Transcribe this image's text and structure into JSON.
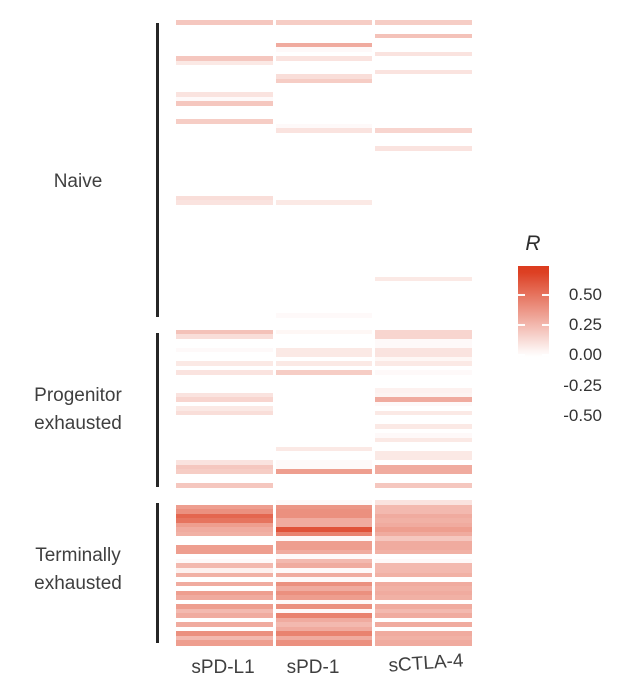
{
  "chart_data": {
    "type": "heatmap",
    "legend_title": "R",
    "columns": [
      "sPD-L1",
      "sPD-1",
      "sCTLA-4"
    ],
    "colorbar": {
      "tick_labels": [
        "0.50",
        "0.25",
        "0.00",
        "-0.25",
        "-0.50"
      ],
      "tick_values": [
        0.5,
        0.25,
        0.0,
        -0.25,
        -0.5
      ],
      "color_high": "#dc3c1f",
      "color_mid": "#ffffff",
      "color_low": "#6b4ecb",
      "scale_pos_max": 0.7,
      "scale_neg_min": -0.6,
      "bar_top_value": 0.74,
      "bar_bottom_value": -0.6
    },
    "row_groups": [
      {
        "name": "Naive",
        "label_lines": [
          "Naive"
        ],
        "values": [
          [
            0.2,
            0.18,
            0.18
          ],
          [
            -0.3,
            -0.3,
            -0.2
          ],
          [
            -0.3,
            -0.32,
            -0.28
          ],
          [
            -0.18,
            0.0,
            0.22
          ],
          [
            -0.08,
            -0.3,
            0.0
          ],
          [
            0.0,
            0.3,
            -0.18
          ],
          [
            -0.32,
            0.02,
            -0.2
          ],
          [
            -0.05,
            -0.06,
            0.1
          ],
          [
            0.2,
            0.1,
            -0.18
          ],
          [
            0.08,
            -0.2,
            -0.2
          ],
          [
            -0.3,
            -0.2,
            0.0
          ],
          [
            -0.45,
            -0.1,
            0.1
          ],
          [
            -0.3,
            0.12,
            -0.18
          ],
          [
            -0.06,
            0.18,
            -0.2
          ],
          [
            -0.2,
            -0.3,
            -0.28
          ],
          [
            -0.18,
            -0.3,
            -0.2
          ],
          [
            0.1,
            -0.2,
            -0.18
          ],
          [
            0.02,
            0.0,
            0.0
          ],
          [
            0.2,
            -0.1,
            -0.08
          ],
          [
            -0.18,
            -0.32,
            -0.3
          ],
          [
            -0.2,
            -0.3,
            -0.32
          ],
          [
            -0.15,
            -0.2,
            -0.3
          ],
          [
            0.18,
            -0.18,
            -0.2
          ],
          [
            -0.05,
            0.02,
            -0.18
          ],
          [
            -0.3,
            0.1,
            0.15
          ],
          [
            -0.35,
            -0.4,
            -0.2
          ],
          [
            -0.3,
            -0.3,
            -0.28
          ],
          [
            -0.15,
            -0.2,
            -0.18
          ],
          [
            -0.1,
            -0.1,
            0.1
          ],
          [
            -0.5,
            -0.55,
            -0.48
          ],
          [
            0.0,
            0.0,
            -0.3
          ],
          [
            0.0,
            -0.18,
            -0.2
          ],
          [
            -0.35,
            -0.28,
            -0.1
          ],
          [
            -0.3,
            -0.3,
            -0.22
          ],
          [
            -0.08,
            -0.2,
            -0.28
          ],
          [
            -0.22,
            -0.08,
            -0.18
          ],
          [
            -0.18,
            -0.2,
            -0.2
          ],
          [
            -0.3,
            -0.3,
            -0.3
          ],
          [
            -0.3,
            -0.28,
            -0.2
          ],
          [
            0.12,
            -0.15,
            -0.1
          ],
          [
            0.1,
            0.08,
            -0.18
          ],
          [
            0.0,
            0.0,
            -0.08
          ],
          [
            -0.15,
            -0.2,
            -0.2
          ],
          [
            -0.35,
            -0.32,
            -0.3
          ],
          [
            -0.45,
            -0.35,
            -0.28
          ],
          [
            -0.3,
            -0.3,
            -0.2
          ],
          [
            -0.2,
            -0.2,
            -0.18
          ],
          [
            -0.18,
            -0.18,
            -0.1
          ],
          [
            -0.05,
            -0.08,
            -0.2
          ],
          [
            -0.2,
            -0.2,
            -0.28
          ],
          [
            -0.3,
            -0.3,
            -0.18
          ],
          [
            -0.2,
            -0.28,
            -0.1
          ],
          [
            -0.15,
            -0.18,
            -0.2
          ],
          [
            -0.28,
            -0.3,
            -0.18
          ],
          [
            -0.5,
            -0.32,
            -0.3
          ],
          [
            -0.5,
            -0.3,
            -0.28
          ],
          [
            -0.3,
            -0.28,
            -0.2
          ],
          [
            -0.18,
            -0.2,
            0.08
          ],
          [
            -0.15,
            -0.18,
            -0.18
          ],
          [
            -0.3,
            -0.3,
            -0.2
          ],
          [
            -0.2,
            -0.2,
            -0.28
          ],
          [
            -0.1,
            -0.1,
            -0.1
          ],
          [
            -0.2,
            -0.2,
            -0.2
          ],
          [
            -0.3,
            -0.3,
            -0.18
          ],
          [
            -0.18,
            -0.2,
            0.0
          ],
          [
            -0.22,
            0.02,
            -0.2
          ]
        ]
      },
      {
        "name": "Progenitor exhausted",
        "label_lines": [
          "Progenitor",
          "exhausted"
        ],
        "values": [
          [
            0.22,
            0.03,
            0.15
          ],
          [
            0.12,
            -0.06,
            0.15
          ],
          [
            -0.12,
            -0.12,
            0.02
          ],
          [
            -0.08,
            -0.08,
            0.02
          ],
          [
            0.02,
            0.08,
            0.1
          ],
          [
            -0.05,
            0.08,
            0.1
          ],
          [
            -0.1,
            -0.05,
            0.03
          ],
          [
            0.08,
            0.08,
            0.08
          ],
          [
            -0.5,
            -0.18,
            -0.15
          ],
          [
            0.1,
            0.18,
            0.02
          ],
          [
            -0.1,
            -0.1,
            -0.12
          ],
          [
            -0.15,
            -0.04,
            -0.08
          ],
          [
            -0.05,
            -0.12,
            -0.03
          ],
          [
            -0.15,
            -0.3,
            0.05
          ],
          [
            0.1,
            -0.02,
            0.04
          ],
          [
            0.15,
            -0.08,
            0.3
          ],
          [
            -0.04,
            -0.12,
            0.02
          ],
          [
            0.08,
            -0.15,
            -0.08
          ],
          [
            0.12,
            -0.04,
            0.08
          ],
          [
            -0.38,
            -0.1,
            -0.15
          ],
          [
            -0.35,
            -0.1,
            -0.05
          ],
          [
            -0.05,
            -0.1,
            0.08
          ],
          [
            -0.35,
            -0.3,
            -0.12
          ],
          [
            -0.05,
            -0.4,
            0.02
          ],
          [
            -0.1,
            -0.3,
            0.08
          ],
          [
            -0.55,
            -0.3,
            -0.3
          ],
          [
            -0.15,
            0.08,
            -0.25
          ],
          [
            -0.08,
            -0.15,
            0.08
          ],
          [
            -0.04,
            -0.1,
            0.08
          ],
          [
            0.1,
            0.02,
            -0.04
          ],
          [
            0.2,
            0.02,
            0.3
          ],
          [
            0.18,
            0.35,
            0.3
          ],
          [
            -0.15,
            -0.12,
            -0.25
          ],
          [
            -0.3,
            -0.05,
            -0.25
          ],
          [
            0.2,
            -0.12,
            0.2
          ]
        ]
      },
      {
        "name": "Terminally exhausted",
        "label_lines": [
          "Terminally",
          "exhausted"
        ],
        "values": [
          [
            -0.08,
            0.02,
            0.1
          ],
          [
            0.35,
            0.38,
            0.25
          ],
          [
            0.4,
            0.4,
            0.25
          ],
          [
            0.55,
            0.4,
            0.3
          ],
          [
            0.5,
            0.3,
            0.28
          ],
          [
            0.35,
            0.3,
            0.3
          ],
          [
            0.3,
            0.62,
            0.35
          ],
          [
            0.28,
            0.45,
            0.3
          ],
          [
            -0.15,
            0.02,
            0.2
          ],
          [
            -0.2,
            0.35,
            0.3
          ],
          [
            0.35,
            0.35,
            0.3
          ],
          [
            0.35,
            0.3,
            0.28
          ],
          [
            -0.1,
            0.02,
            -0.02
          ],
          [
            0.02,
            0.25,
            0.02
          ],
          [
            0.25,
            0.3,
            0.25
          ],
          [
            0.05,
            0.02,
            0.25
          ],
          [
            0.28,
            0.3,
            0.28
          ],
          [
            -0.12,
            0.02,
            -0.18
          ],
          [
            0.3,
            0.4,
            0.3
          ],
          [
            -0.18,
            0.3,
            0.28
          ],
          [
            0.35,
            0.4,
            0.3
          ],
          [
            0.3,
            0.35,
            0.28
          ],
          [
            -0.12,
            0.02,
            -0.12
          ],
          [
            0.35,
            0.4,
            0.3
          ],
          [
            0.25,
            0.02,
            0.25
          ],
          [
            0.3,
            0.45,
            0.3
          ],
          [
            -0.1,
            0.3,
            -0.15
          ],
          [
            0.3,
            0.25,
            0.3
          ],
          [
            -0.12,
            0.3,
            -0.12
          ],
          [
            0.4,
            0.45,
            0.3
          ],
          [
            0.25,
            0.3,
            0.28
          ],
          [
            0.35,
            0.4,
            0.3
          ]
        ]
      }
    ]
  }
}
